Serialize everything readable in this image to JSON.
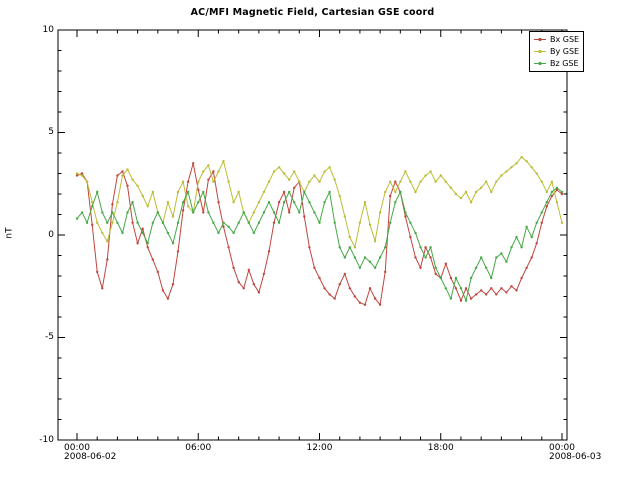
{
  "chart_data": {
    "type": "line",
    "title": "AC/MFI  Magnetic Field, Cartesian GSE coord",
    "ylabel": "nT",
    "ylim": [
      -10,
      10
    ],
    "yticks": [
      -10,
      -5,
      0,
      5,
      10
    ],
    "y_minor_step": 1,
    "xlim_hours": [
      0,
      24
    ],
    "x_minor_step_hours": 1,
    "xtick_hours": [
      0,
      6,
      12,
      18,
      24
    ],
    "xtick_labels": [
      "00:00",
      "06:00",
      "12:00",
      "18:00",
      "00:00"
    ],
    "x_start_date": "2008-06-02",
    "x_end_date": "2008-06-03",
    "x_start_hour": 0,
    "x_step_hours": 0.25,
    "grid": false,
    "legend_position": "top-right",
    "axis_color": "#000000",
    "series": [
      {
        "name": "Bx GSE",
        "color": "#c0453e",
        "values": [
          2.9,
          3.0,
          2.6,
          0.5,
          -1.8,
          -2.6,
          -1.2,
          1.5,
          2.9,
          3.1,
          2.4,
          0.6,
          -0.4,
          0.3,
          -0.6,
          -1.2,
          -1.8,
          -2.7,
          -3.1,
          -2.4,
          -0.8,
          1.2,
          2.6,
          3.5,
          2.2,
          1.1,
          2.7,
          3.1,
          1.6,
          0.4,
          -0.6,
          -1.6,
          -2.3,
          -2.6,
          -1.7,
          -2.4,
          -2.8,
          -1.9,
          -0.8,
          0.6,
          1.6,
          2.1,
          1.1,
          2.3,
          2.6,
          0.9,
          -0.6,
          -1.6,
          -2.1,
          -2.6,
          -2.9,
          -3.1,
          -2.4,
          -1.9,
          -2.6,
          -3.0,
          -3.3,
          -3.4,
          -2.6,
          -3.1,
          -3.4,
          -1.8,
          1.9,
          2.6,
          2.1,
          0.9,
          -0.1,
          -1.1,
          -1.6,
          -0.6,
          -1.1,
          -1.9,
          -2.1,
          -1.4,
          -2.1,
          -2.6,
          -3.2,
          -2.6,
          -3.1,
          -2.9,
          -2.7,
          -2.9,
          -2.6,
          -2.9,
          -2.6,
          -2.8,
          -2.5,
          -2.7,
          -2.1,
          -1.6,
          -1.1,
          -0.4,
          0.6,
          1.4,
          1.9,
          2.2,
          2.0
        ]
      },
      {
        "name": "By GSE",
        "color": "#bcbd35",
        "values": [
          3.0,
          2.9,
          2.6,
          1.6,
          0.6,
          0.1,
          -0.3,
          0.6,
          1.6,
          2.9,
          3.2,
          2.7,
          2.4,
          1.9,
          1.4,
          2.1,
          1.1,
          0.6,
          1.6,
          0.9,
          2.1,
          2.6,
          1.4,
          1.1,
          2.6,
          3.1,
          3.4,
          2.6,
          3.1,
          3.6,
          2.6,
          1.6,
          2.1,
          1.1,
          0.6,
          1.1,
          1.6,
          2.1,
          2.6,
          3.1,
          3.3,
          3.0,
          2.7,
          3.1,
          2.6,
          2.1,
          2.6,
          2.9,
          2.6,
          3.1,
          3.3,
          2.7,
          1.9,
          0.9,
          -0.1,
          -0.6,
          0.6,
          1.6,
          0.5,
          -0.3,
          1.1,
          2.1,
          2.6,
          2.1,
          2.6,
          3.1,
          2.6,
          2.1,
          2.6,
          2.9,
          3.1,
          2.6,
          2.9,
          2.6,
          2.3,
          2.0,
          1.8,
          2.1,
          1.6,
          2.1,
          2.3,
          2.6,
          2.1,
          2.6,
          2.9,
          3.1,
          3.3,
          3.5,
          3.8,
          3.6,
          3.3,
          3.0,
          2.6,
          2.1,
          2.6,
          1.6,
          0.6
        ]
      },
      {
        "name": "Bz GSE",
        "color": "#45a945",
        "values": [
          0.8,
          1.1,
          0.6,
          1.4,
          2.1,
          1.1,
          0.6,
          1.1,
          0.6,
          0.1,
          1.1,
          1.6,
          0.6,
          0.1,
          -0.4,
          0.6,
          1.1,
          0.6,
          0.1,
          -0.4,
          0.6,
          1.6,
          2.1,
          1.1,
          1.6,
          2.1,
          1.1,
          0.6,
          0.1,
          0.6,
          0.4,
          0.1,
          0.6,
          1.1,
          0.6,
          0.1,
          0.6,
          1.1,
          1.6,
          1.1,
          0.6,
          1.6,
          2.1,
          1.6,
          1.1,
          2.1,
          1.6,
          1.1,
          0.6,
          1.6,
          2.1,
          0.6,
          -0.6,
          -1.1,
          -0.6,
          -1.1,
          -1.6,
          -1.1,
          -1.3,
          -1.6,
          -1.1,
          -0.6,
          0.6,
          1.6,
          2.1,
          1.1,
          0.6,
          0.1,
          -0.6,
          -1.1,
          -0.6,
          -1.6,
          -2.1,
          -2.6,
          -3.1,
          -2.1,
          -2.6,
          -3.2,
          -2.1,
          -1.6,
          -1.1,
          -1.6,
          -2.1,
          -1.1,
          -0.9,
          -1.3,
          -0.6,
          -0.1,
          -0.6,
          0.4,
          -0.1,
          0.6,
          1.1,
          1.6,
          2.1,
          2.3,
          2.1
        ]
      }
    ]
  }
}
